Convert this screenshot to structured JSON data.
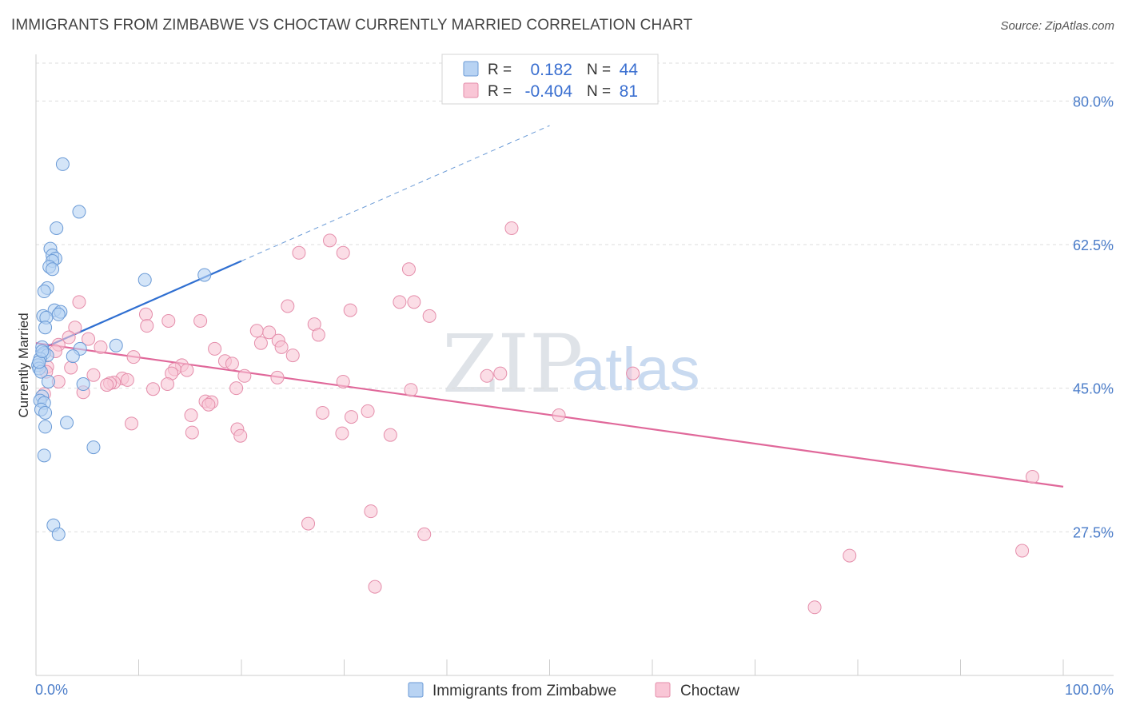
{
  "title": "IMMIGRANTS FROM ZIMBABWE VS CHOCTAW CURRENTLY MARRIED CORRELATION CHART",
  "source": "Source: ZipAtlas.com",
  "watermark": {
    "zip": "ZIP",
    "atlas": "atlas"
  },
  "legend": {
    "rows": [
      {
        "r_label": "R =",
        "r_value": "0.182",
        "n_label": "N =",
        "n_value": "44"
      },
      {
        "r_label": "R =",
        "r_value": "-0.404",
        "n_label": "N =",
        "n_value": "81"
      }
    ]
  },
  "bottom_legend": [
    "Immigrants from Zimbabwe",
    "Choctaw"
  ],
  "colors": {
    "blue_fill": "#b8d3f3",
    "blue_stroke": "#6a9ad6",
    "blue_line": "#2f6fd1",
    "pink_fill": "#f9c6d6",
    "pink_stroke": "#e58eab",
    "pink_line": "#e0689a",
    "grid": "#dddddd",
    "axis_label": "#4a7cc9"
  },
  "chart_data": {
    "type": "scatter",
    "title": "IMMIGRANTS FROM ZIMBABWE VS CHOCTAW CURRENTLY MARRIED CORRELATION CHART",
    "xlabel": "",
    "ylabel": "Currently Married",
    "xlim": [
      0,
      100
    ],
    "ylim": [
      10,
      85
    ],
    "x_tick_labels": [
      "0.0%",
      "100.0%"
    ],
    "y_ticks": [
      27.5,
      45.0,
      62.5,
      80.0
    ],
    "y_tick_labels": [
      "27.5%",
      "45.0%",
      "62.5%",
      "80.0%"
    ],
    "grid": true,
    "legend_position": "top-center",
    "series": [
      {
        "name": "Immigrants from Zimbabwe",
        "r": 0.182,
        "n": 44,
        "trend": {
          "x": [
            0,
            20
          ],
          "y": [
            49.5,
            60.5
          ],
          "dashed_to": [
            50,
            77
          ]
        },
        "points": [
          [
            2.6,
            72.3
          ],
          [
            4.2,
            66.5
          ],
          [
            2.0,
            64.5
          ],
          [
            1.4,
            62.0
          ],
          [
            1.6,
            61.2
          ],
          [
            1.9,
            60.8
          ],
          [
            1.6,
            60.5
          ],
          [
            1.3,
            59.8
          ],
          [
            1.6,
            59.5
          ],
          [
            10.6,
            58.2
          ],
          [
            16.4,
            58.8
          ],
          [
            1.1,
            57.2
          ],
          [
            0.8,
            56.8
          ],
          [
            1.8,
            54.5
          ],
          [
            2.4,
            54.3
          ],
          [
            2.2,
            54.0
          ],
          [
            0.7,
            53.8
          ],
          [
            1.0,
            53.6
          ],
          [
            0.9,
            52.4
          ],
          [
            7.8,
            50.2
          ],
          [
            0.6,
            50.0
          ],
          [
            4.3,
            49.8
          ],
          [
            0.8,
            49.3
          ],
          [
            1.1,
            49.0
          ],
          [
            3.6,
            48.9
          ],
          [
            0.4,
            48.6
          ],
          [
            0.2,
            47.8
          ],
          [
            0.3,
            47.4
          ],
          [
            0.5,
            47.0
          ],
          [
            1.2,
            45.8
          ],
          [
            4.6,
            45.5
          ],
          [
            0.6,
            44.0
          ],
          [
            0.4,
            43.5
          ],
          [
            0.8,
            43.2
          ],
          [
            0.5,
            42.4
          ],
          [
            0.9,
            42.0
          ],
          [
            3.0,
            40.8
          ],
          [
            0.9,
            40.3
          ],
          [
            5.6,
            37.8
          ],
          [
            0.8,
            36.8
          ],
          [
            1.7,
            28.3
          ],
          [
            2.2,
            27.2
          ],
          [
            0.3,
            48.2
          ],
          [
            0.6,
            49.5
          ]
        ]
      },
      {
        "name": "Choctaw",
        "r": -0.404,
        "n": 81,
        "trend": {
          "x": [
            0,
            100
          ],
          "y": [
            50.5,
            33.0
          ]
        },
        "points": [
          [
            46.3,
            64.5
          ],
          [
            28.6,
            63.0
          ],
          [
            25.6,
            61.5
          ],
          [
            29.9,
            61.5
          ],
          [
            36.3,
            59.5
          ],
          [
            35.4,
            55.5
          ],
          [
            36.8,
            55.5
          ],
          [
            4.2,
            55.5
          ],
          [
            24.5,
            55.0
          ],
          [
            30.6,
            54.5
          ],
          [
            10.7,
            54.0
          ],
          [
            38.3,
            53.8
          ],
          [
            12.9,
            53.2
          ],
          [
            16.0,
            53.2
          ],
          [
            27.1,
            52.8
          ],
          [
            10.8,
            52.6
          ],
          [
            3.8,
            52.4
          ],
          [
            21.5,
            52.0
          ],
          [
            22.7,
            51.8
          ],
          [
            27.5,
            51.5
          ],
          [
            3.2,
            51.2
          ],
          [
            5.1,
            51.0
          ],
          [
            23.6,
            50.8
          ],
          [
            21.9,
            50.5
          ],
          [
            2.2,
            50.3
          ],
          [
            6.3,
            50.0
          ],
          [
            23.9,
            50.0
          ],
          [
            17.4,
            49.8
          ],
          [
            1.9,
            49.5
          ],
          [
            25.0,
            49.0
          ],
          [
            9.5,
            48.8
          ],
          [
            18.4,
            48.3
          ],
          [
            19.1,
            48.0
          ],
          [
            14.2,
            47.8
          ],
          [
            1.1,
            47.6
          ],
          [
            3.4,
            47.5
          ],
          [
            13.5,
            47.3
          ],
          [
            14.7,
            47.2
          ],
          [
            1.0,
            47.0
          ],
          [
            45.2,
            46.8
          ],
          [
            58.1,
            46.8
          ],
          [
            13.2,
            46.8
          ],
          [
            5.6,
            46.6
          ],
          [
            43.9,
            46.5
          ],
          [
            20.3,
            46.5
          ],
          [
            23.5,
            46.3
          ],
          [
            8.4,
            46.2
          ],
          [
            8.9,
            46.0
          ],
          [
            29.9,
            45.8
          ],
          [
            7.6,
            45.7
          ],
          [
            2.2,
            45.8
          ],
          [
            7.2,
            45.6
          ],
          [
            6.9,
            45.4
          ],
          [
            12.8,
            45.5
          ],
          [
            19.5,
            45.0
          ],
          [
            11.4,
            44.9
          ],
          [
            36.5,
            44.8
          ],
          [
            4.6,
            44.5
          ],
          [
            0.8,
            44.3
          ],
          [
            16.5,
            43.4
          ],
          [
            17.1,
            43.3
          ],
          [
            16.8,
            43.0
          ],
          [
            27.9,
            42.0
          ],
          [
            32.3,
            42.2
          ],
          [
            30.7,
            41.5
          ],
          [
            50.9,
            41.7
          ],
          [
            15.1,
            41.7
          ],
          [
            9.3,
            40.7
          ],
          [
            19.6,
            40.0
          ],
          [
            19.9,
            39.2
          ],
          [
            15.2,
            39.6
          ],
          [
            29.8,
            39.5
          ],
          [
            34.5,
            39.3
          ],
          [
            97.0,
            34.2
          ],
          [
            32.6,
            30.0
          ],
          [
            26.5,
            28.5
          ],
          [
            37.8,
            27.2
          ],
          [
            79.2,
            24.6
          ],
          [
            96.0,
            25.2
          ],
          [
            33.0,
            20.8
          ],
          [
            75.8,
            18.3
          ]
        ]
      }
    ]
  }
}
